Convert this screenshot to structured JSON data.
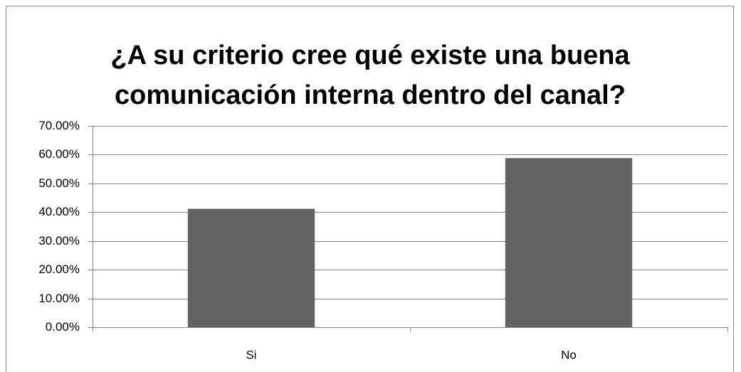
{
  "chart_data": {
    "type": "bar",
    "title": [
      "¿A su criterio cree qué existe una buena",
      "comunicación interna dentro del canal?"
    ],
    "categories": [
      "Si",
      "No"
    ],
    "values": [
      41.18,
      58.82
    ],
    "color": "#636363",
    "ylim": [
      0,
      70
    ],
    "yticks": [
      {
        "value": 0,
        "label": "0.00%"
      },
      {
        "value": 10,
        "label": "10.00%"
      },
      {
        "value": 20,
        "label": "20.00%"
      },
      {
        "value": 30,
        "label": "30.00%"
      },
      {
        "value": 40,
        "label": "40.00%"
      },
      {
        "value": 50,
        "label": "50.00%"
      },
      {
        "value": 60,
        "label": "60.00%"
      },
      {
        "value": 70,
        "label": "70.00%"
      }
    ],
    "grid": true
  }
}
